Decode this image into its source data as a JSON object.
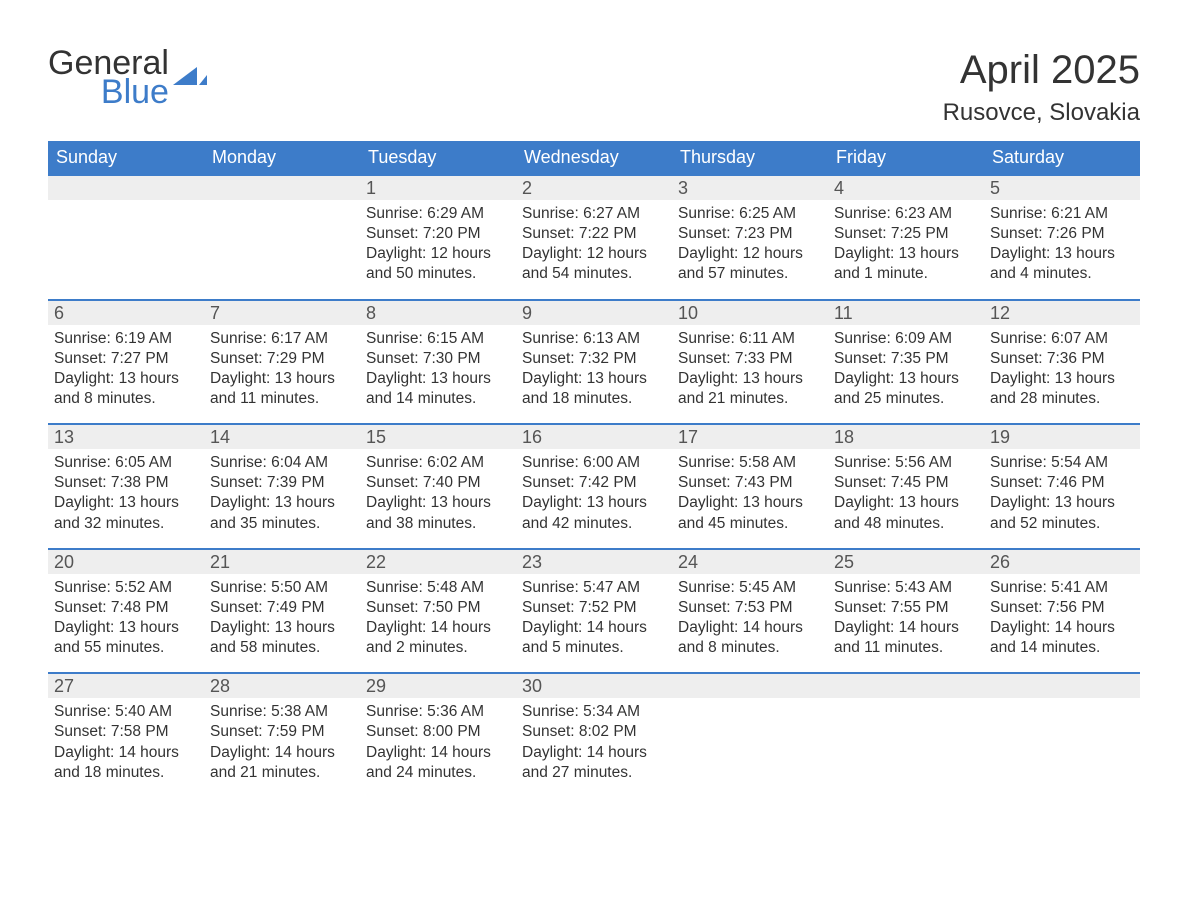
{
  "logo": {
    "word1": "General",
    "word2": "Blue"
  },
  "title": "April 2025",
  "location": "Rusovce, Slovakia",
  "colors": {
    "brand_blue": "#3d7cc9",
    "header_text": "#ffffff",
    "daynum_bg": "#eeeeee",
    "text": "#333333",
    "background": "#ffffff"
  },
  "daysOfWeek": [
    "Sunday",
    "Monday",
    "Tuesday",
    "Wednesday",
    "Thursday",
    "Friday",
    "Saturday"
  ],
  "weeks": [
    [
      {
        "n": "",
        "sunrise": "",
        "sunset": "",
        "daylight": ""
      },
      {
        "n": "",
        "sunrise": "",
        "sunset": "",
        "daylight": ""
      },
      {
        "n": "1",
        "sunrise": "Sunrise: 6:29 AM",
        "sunset": "Sunset: 7:20 PM",
        "daylight": "Daylight: 12 hours and 50 minutes."
      },
      {
        "n": "2",
        "sunrise": "Sunrise: 6:27 AM",
        "sunset": "Sunset: 7:22 PM",
        "daylight": "Daylight: 12 hours and 54 minutes."
      },
      {
        "n": "3",
        "sunrise": "Sunrise: 6:25 AM",
        "sunset": "Sunset: 7:23 PM",
        "daylight": "Daylight: 12 hours and 57 minutes."
      },
      {
        "n": "4",
        "sunrise": "Sunrise: 6:23 AM",
        "sunset": "Sunset: 7:25 PM",
        "daylight": "Daylight: 13 hours and 1 minute."
      },
      {
        "n": "5",
        "sunrise": "Sunrise: 6:21 AM",
        "sunset": "Sunset: 7:26 PM",
        "daylight": "Daylight: 13 hours and 4 minutes."
      }
    ],
    [
      {
        "n": "6",
        "sunrise": "Sunrise: 6:19 AM",
        "sunset": "Sunset: 7:27 PM",
        "daylight": "Daylight: 13 hours and 8 minutes."
      },
      {
        "n": "7",
        "sunrise": "Sunrise: 6:17 AM",
        "sunset": "Sunset: 7:29 PM",
        "daylight": "Daylight: 13 hours and 11 minutes."
      },
      {
        "n": "8",
        "sunrise": "Sunrise: 6:15 AM",
        "sunset": "Sunset: 7:30 PM",
        "daylight": "Daylight: 13 hours and 14 minutes."
      },
      {
        "n": "9",
        "sunrise": "Sunrise: 6:13 AM",
        "sunset": "Sunset: 7:32 PM",
        "daylight": "Daylight: 13 hours and 18 minutes."
      },
      {
        "n": "10",
        "sunrise": "Sunrise: 6:11 AM",
        "sunset": "Sunset: 7:33 PM",
        "daylight": "Daylight: 13 hours and 21 minutes."
      },
      {
        "n": "11",
        "sunrise": "Sunrise: 6:09 AM",
        "sunset": "Sunset: 7:35 PM",
        "daylight": "Daylight: 13 hours and 25 minutes."
      },
      {
        "n": "12",
        "sunrise": "Sunrise: 6:07 AM",
        "sunset": "Sunset: 7:36 PM",
        "daylight": "Daylight: 13 hours and 28 minutes."
      }
    ],
    [
      {
        "n": "13",
        "sunrise": "Sunrise: 6:05 AM",
        "sunset": "Sunset: 7:38 PM",
        "daylight": "Daylight: 13 hours and 32 minutes."
      },
      {
        "n": "14",
        "sunrise": "Sunrise: 6:04 AM",
        "sunset": "Sunset: 7:39 PM",
        "daylight": "Daylight: 13 hours and 35 minutes."
      },
      {
        "n": "15",
        "sunrise": "Sunrise: 6:02 AM",
        "sunset": "Sunset: 7:40 PM",
        "daylight": "Daylight: 13 hours and 38 minutes."
      },
      {
        "n": "16",
        "sunrise": "Sunrise: 6:00 AM",
        "sunset": "Sunset: 7:42 PM",
        "daylight": "Daylight: 13 hours and 42 minutes."
      },
      {
        "n": "17",
        "sunrise": "Sunrise: 5:58 AM",
        "sunset": "Sunset: 7:43 PM",
        "daylight": "Daylight: 13 hours and 45 minutes."
      },
      {
        "n": "18",
        "sunrise": "Sunrise: 5:56 AM",
        "sunset": "Sunset: 7:45 PM",
        "daylight": "Daylight: 13 hours and 48 minutes."
      },
      {
        "n": "19",
        "sunrise": "Sunrise: 5:54 AM",
        "sunset": "Sunset: 7:46 PM",
        "daylight": "Daylight: 13 hours and 52 minutes."
      }
    ],
    [
      {
        "n": "20",
        "sunrise": "Sunrise: 5:52 AM",
        "sunset": "Sunset: 7:48 PM",
        "daylight": "Daylight: 13 hours and 55 minutes."
      },
      {
        "n": "21",
        "sunrise": "Sunrise: 5:50 AM",
        "sunset": "Sunset: 7:49 PM",
        "daylight": "Daylight: 13 hours and 58 minutes."
      },
      {
        "n": "22",
        "sunrise": "Sunrise: 5:48 AM",
        "sunset": "Sunset: 7:50 PM",
        "daylight": "Daylight: 14 hours and 2 minutes."
      },
      {
        "n": "23",
        "sunrise": "Sunrise: 5:47 AM",
        "sunset": "Sunset: 7:52 PM",
        "daylight": "Daylight: 14 hours and 5 minutes."
      },
      {
        "n": "24",
        "sunrise": "Sunrise: 5:45 AM",
        "sunset": "Sunset: 7:53 PM",
        "daylight": "Daylight: 14 hours and 8 minutes."
      },
      {
        "n": "25",
        "sunrise": "Sunrise: 5:43 AM",
        "sunset": "Sunset: 7:55 PM",
        "daylight": "Daylight: 14 hours and 11 minutes."
      },
      {
        "n": "26",
        "sunrise": "Sunrise: 5:41 AM",
        "sunset": "Sunset: 7:56 PM",
        "daylight": "Daylight: 14 hours and 14 minutes."
      }
    ],
    [
      {
        "n": "27",
        "sunrise": "Sunrise: 5:40 AM",
        "sunset": "Sunset: 7:58 PM",
        "daylight": "Daylight: 14 hours and 18 minutes."
      },
      {
        "n": "28",
        "sunrise": "Sunrise: 5:38 AM",
        "sunset": "Sunset: 7:59 PM",
        "daylight": "Daylight: 14 hours and 21 minutes."
      },
      {
        "n": "29",
        "sunrise": "Sunrise: 5:36 AM",
        "sunset": "Sunset: 8:00 PM",
        "daylight": "Daylight: 14 hours and 24 minutes."
      },
      {
        "n": "30",
        "sunrise": "Sunrise: 5:34 AM",
        "sunset": "Sunset: 8:02 PM",
        "daylight": "Daylight: 14 hours and 27 minutes."
      },
      {
        "n": "",
        "sunrise": "",
        "sunset": "",
        "daylight": ""
      },
      {
        "n": "",
        "sunrise": "",
        "sunset": "",
        "daylight": ""
      },
      {
        "n": "",
        "sunrise": "",
        "sunset": "",
        "daylight": ""
      }
    ]
  ]
}
